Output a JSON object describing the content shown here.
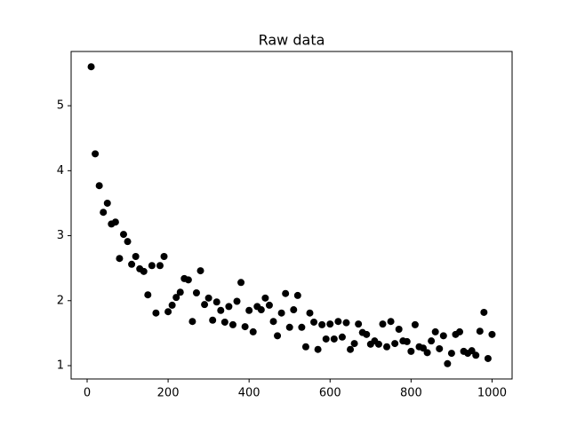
{
  "chart_data": {
    "type": "scatter",
    "title": "Raw data",
    "color": "#000000",
    "x": [
      10,
      20,
      30,
      40,
      50,
      60,
      70,
      80,
      90,
      100,
      110,
      120,
      130,
      140,
      150,
      160,
      170,
      180,
      190,
      200,
      210,
      220,
      230,
      240,
      250,
      260,
      270,
      280,
      290,
      300,
      310,
      320,
      330,
      340,
      350,
      360,
      370,
      380,
      390,
      400,
      410,
      420,
      430,
      440,
      450,
      460,
      470,
      480,
      490,
      500,
      510,
      520,
      530,
      540,
      550,
      560,
      570,
      580,
      590,
      600,
      610,
      620,
      630,
      640,
      650,
      660,
      670,
      680,
      690,
      700,
      710,
      720,
      730,
      740,
      750,
      760,
      770,
      780,
      790,
      800,
      810,
      820,
      830,
      840,
      850,
      860,
      870,
      880,
      890,
      900,
      910,
      920,
      930,
      940,
      950,
      960,
      970,
      980,
      990,
      1000
    ],
    "values": [
      5.6,
      4.26,
      3.77,
      3.36,
      3.5,
      3.18,
      3.21,
      2.65,
      3.02,
      2.91,
      2.56,
      2.68,
      2.49,
      2.45,
      2.09,
      2.54,
      1.81,
      2.54,
      2.68,
      1.83,
      1.93,
      2.05,
      2.13,
      2.34,
      2.32,
      1.68,
      2.12,
      2.46,
      1.94,
      2.04,
      1.7,
      1.98,
      1.85,
      1.67,
      1.91,
      1.63,
      1.99,
      2.28,
      1.6,
      1.85,
      1.52,
      1.91,
      1.86,
      2.04,
      1.93,
      1.68,
      1.46,
      1.81,
      2.11,
      1.59,
      1.86,
      2.08,
      1.59,
      1.29,
      1.81,
      1.67,
      1.25,
      1.63,
      1.41,
      1.64,
      1.41,
      1.68,
      1.44,
      1.66,
      1.25,
      1.34,
      1.64,
      1.51,
      1.48,
      1.33,
      1.38,
      1.33,
      1.64,
      1.29,
      1.68,
      1.34,
      1.56,
      1.38,
      1.37,
      1.22,
      1.63,
      1.29,
      1.27,
      1.2,
      1.38,
      1.52,
      1.26,
      1.46,
      1.03,
      1.19,
      1.48,
      1.52,
      1.22,
      1.19,
      1.23,
      1.16,
      1.53,
      1.82,
      1.11,
      1.48
    ],
    "xlim": [
      -39.5,
      1049.5
    ],
    "ylim": [
      0.795,
      5.835
    ],
    "xticks": [
      0,
      200,
      400,
      600,
      800,
      1000
    ],
    "yticks": [
      1,
      2,
      3,
      4,
      5
    ],
    "grid": false
  }
}
